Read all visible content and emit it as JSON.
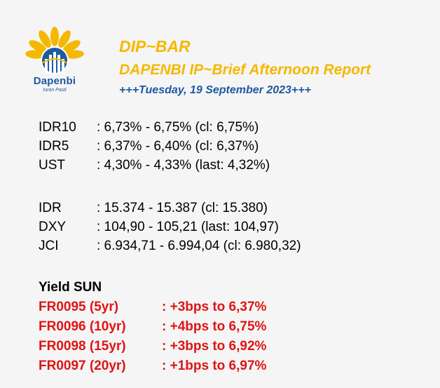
{
  "logo": {
    "name": "Dapenbi",
    "tagline": "Iuran Pasti",
    "colors": {
      "petal": "#f5b800",
      "globe": "#1e5aa0"
    }
  },
  "header": {
    "title": "DIP~BAR",
    "subtitle": "DAPENBI IP~Brief Afternoon Report",
    "date": "+++Tuesday, 19 September 2023+++"
  },
  "bonds": [
    {
      "label": "IDR10",
      "value": ": 6,73% - 6,75% (cl: 6,75%)"
    },
    {
      "label": "IDR5",
      "value": ": 6,37% - 6,40% (cl: 6,37%)"
    },
    {
      "label": "UST",
      "value": ": 4,30% - 4,33% (last: 4,32%)"
    }
  ],
  "markets": [
    {
      "label": "IDR",
      "value": ": 15.374 - 15.387 (cl: 15.380)"
    },
    {
      "label": "DXY",
      "value": ": 104,90 - 105,21 (last: 104,97)"
    },
    {
      "label": "JCI",
      "value": ": 6.934,71 - 6.994,04 (cl: 6.980,32)"
    }
  ],
  "yield_sun": {
    "heading": "Yield SUN",
    "items": [
      {
        "series": "FR0095 (5yr)",
        "change": ": +3bps to 6,37%"
      },
      {
        "series": "FR0096 (10yr)",
        "change": ": +4bps to 6,75%"
      },
      {
        "series": "FR0098 (15yr)",
        "change": ": +3bps to 6,92%"
      },
      {
        "series": "FR0097 (20yr)",
        "change": ": +1bps to 6,97%"
      }
    ]
  },
  "colors": {
    "background": "#f5f5f5",
    "title_yellow": "#f5b800",
    "date_blue": "#1e5aa0",
    "yield_red": "#e01414"
  }
}
